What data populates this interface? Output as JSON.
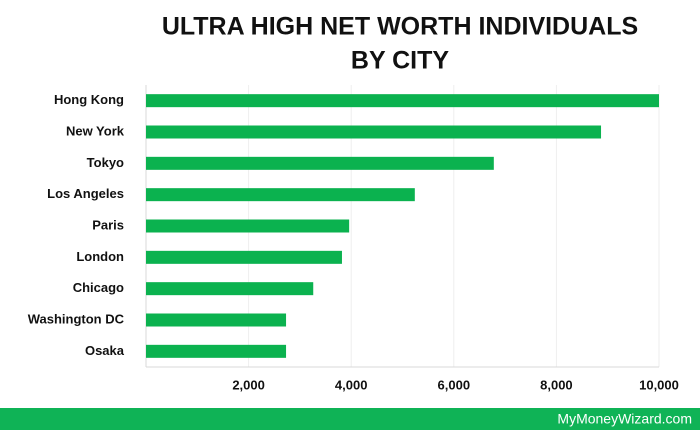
{
  "chart_data": {
    "type": "hbar",
    "title": [
      "ULTRA HIGH NET WORTH INDIVIDUALS",
      "BY CITY"
    ],
    "categories": [
      "Hong Kong",
      "New York",
      "Tokyo",
      "Los Angeles",
      "Paris",
      "London",
      "Chicago",
      "Washington DC",
      "Osaka"
    ],
    "values": [
      10000,
      8870,
      6780,
      5240,
      3960,
      3820,
      3260,
      2730,
      2730
    ],
    "color": "#0bb24f",
    "xlim": [
      0,
      10000
    ],
    "xticks": [
      {
        "value": 2000,
        "label": "2,000"
      },
      {
        "value": 4000,
        "label": "4,000"
      },
      {
        "value": 6000,
        "label": "6,000"
      },
      {
        "value": 8000,
        "label": "8,000"
      },
      {
        "value": 10000,
        "label": "10,000"
      }
    ],
    "grid": true
  },
  "footer": "MyMoneyWizard.com"
}
